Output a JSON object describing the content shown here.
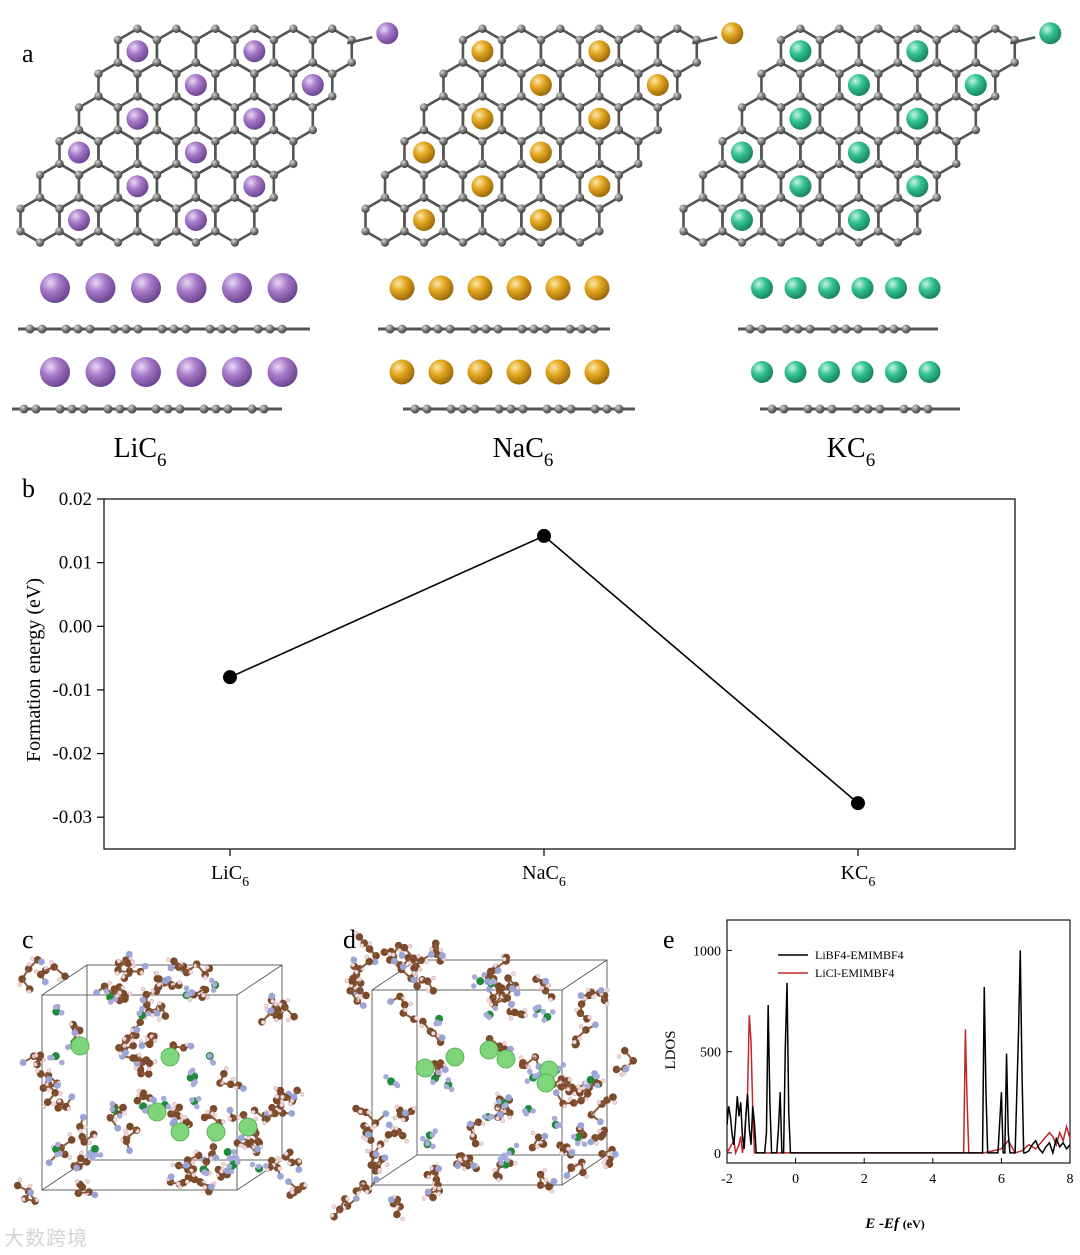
{
  "panel_a": {
    "label": "a",
    "compounds": [
      {
        "name": "LiC",
        "sub": "6",
        "color": "#9b6bbf",
        "highlight": "#cfb0e3",
        "stroke": "#6e4a8c",
        "size": "large"
      },
      {
        "name": "NaC",
        "sub": "6",
        "color": "#e3a61e",
        "highlight": "#f6d27a",
        "stroke": "#9c6f10",
        "size": "medium"
      },
      {
        "name": "KC",
        "sub": "6",
        "color": "#2fbf8e",
        "highlight": "#92e6c8",
        "stroke": "#1d8a63",
        "size": "small"
      }
    ]
  },
  "chart_data": [
    {
      "type": "line",
      "panel": "b",
      "categories": [
        "LiC6",
        "NaC6",
        "KC6"
      ],
      "category_labels": [
        {
          "main": "LiC",
          "sub": "6"
        },
        {
          "main": "NaC",
          "sub": "6"
        },
        {
          "main": "KC",
          "sub": "6"
        }
      ],
      "values": [
        -0.008,
        0.0142,
        -0.0278
      ],
      "ylabel": "Formation energy (eV)",
      "xlabel": "",
      "ylim": [
        -0.035,
        0.02
      ],
      "yticks": [
        "0.02",
        "0.01",
        "0.00",
        "-0.01",
        "-0.02",
        "-0.03"
      ],
      "ytick_values": [
        0.02,
        0.01,
        0.0,
        -0.01,
        -0.02,
        -0.03
      ],
      "marker": "circle",
      "color": "#000000"
    },
    {
      "type": "line",
      "panel": "e",
      "xlabel_main": "E -Ef",
      "xlabel_unit": "(eV)",
      "ylabel": "LDOS",
      "xlim": [
        -2,
        8
      ],
      "ylim": [
        -50,
        1150
      ],
      "xticks": [
        "-2",
        "0",
        "2",
        "4",
        "6",
        "8"
      ],
      "xtick_values": [
        -2,
        0,
        2,
        4,
        6,
        8
      ],
      "yticks": [
        "0",
        "500",
        "1000"
      ],
      "ytick_values": [
        0,
        500,
        1000
      ],
      "series": [
        {
          "name": "LiBF4-EMIMBF4",
          "color": "#000000",
          "x": [
            -2,
            -1.95,
            -1.9,
            -1.85,
            -1.8,
            -1.75,
            -1.7,
            -1.65,
            -1.6,
            -1.55,
            -1.5,
            -1.45,
            -1.4,
            -1.35,
            -1.3,
            -1.25,
            -1.2,
            -1.15,
            -1.1,
            -1.05,
            -1.0,
            -0.95,
            -0.9,
            -0.85,
            -0.8,
            -0.75,
            -0.7,
            -0.65,
            -0.6,
            -0.55,
            -0.5,
            -0.45,
            -0.4,
            -0.35,
            -0.3,
            -0.25,
            -0.2,
            -0.15,
            -0.1,
            -0.05,
            0.0,
            0.05,
            0.1,
            0.3,
            1.0,
            2.0,
            3.0,
            4.0,
            5.0,
            5.3,
            5.4,
            5.45,
            5.5,
            5.55,
            5.6,
            5.7,
            5.9,
            6.0,
            6.05,
            6.1,
            6.15,
            6.2,
            6.25,
            6.3,
            6.4,
            6.5,
            6.55,
            6.6,
            6.65,
            6.7,
            6.8,
            6.9,
            7.0,
            7.1,
            7.2,
            7.3,
            7.4,
            7.5,
            7.6,
            7.7,
            7.8,
            7.9,
            8.0
          ],
          "y": [
            140,
            230,
            180,
            90,
            40,
            150,
            280,
            180,
            250,
            80,
            20,
            180,
            290,
            120,
            40,
            230,
            150,
            0,
            0,
            0,
            0,
            0,
            0,
            100,
            730,
            250,
            0,
            0,
            0,
            0,
            120,
            300,
            0,
            0,
            520,
            840,
            200,
            0,
            0,
            0,
            0,
            0,
            0,
            0,
            0,
            0,
            0,
            0,
            0,
            0,
            0,
            0,
            820,
            300,
            0,
            0,
            0,
            300,
            0,
            0,
            490,
            100,
            0,
            0,
            0,
            600,
            1000,
            400,
            0,
            0,
            10,
            40,
            60,
            20,
            0,
            30,
            50,
            0,
            70,
            30,
            50,
            20,
            40
          ]
        },
        {
          "name": "LiCl-EMIMBF4",
          "color": "#c0262c",
          "x": [
            -2,
            -1.9,
            -1.8,
            -1.75,
            -1.7,
            -1.65,
            -1.6,
            -1.55,
            -1.5,
            -1.45,
            -1.4,
            -1.35,
            -1.3,
            -1.25,
            -1.2,
            -1.15,
            -1.1,
            -1.05,
            -1.0,
            -0.9,
            -0.5,
            0.0,
            1.0,
            2.0,
            3.0,
            4.0,
            4.8,
            4.9,
            4.95,
            5.0,
            5.05,
            5.1,
            5.5,
            6.0,
            6.2,
            6.4,
            6.6,
            6.8,
            7.0,
            7.2,
            7.4,
            7.5,
            7.6,
            7.7,
            7.8,
            7.9,
            8.0
          ],
          "y": [
            0,
            30,
            60,
            0,
            20,
            40,
            80,
            0,
            60,
            180,
            300,
            680,
            550,
            220,
            0,
            0,
            0,
            0,
            0,
            0,
            0,
            0,
            0,
            0,
            0,
            0,
            0,
            0,
            610,
            250,
            0,
            0,
            0,
            20,
            60,
            0,
            10,
            40,
            20,
            60,
            100,
            80,
            40,
            100,
            60,
            130,
            70
          ]
        }
      ]
    }
  ],
  "panel_b": {
    "label": "b"
  },
  "panel_c": {
    "label": "c"
  },
  "panel_d": {
    "label": "d"
  },
  "panel_e": {
    "label": "e"
  },
  "watermark": "大数跨境"
}
